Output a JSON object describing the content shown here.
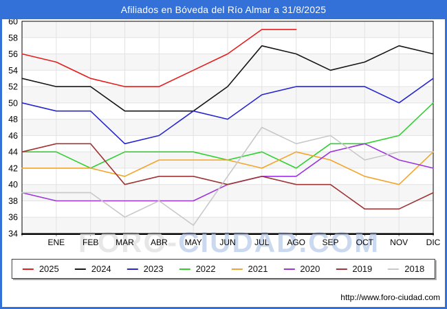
{
  "window": {
    "title": "Afiliados en Bóveda del Río Almar a 31/8/2025"
  },
  "watermark": {
    "part1": "FORO-",
    "part2": "CIUDAD.COM"
  },
  "footer": {
    "url": "http://www.foro-ciudad.com"
  },
  "colors": {
    "frame_blue": "#3371d9",
    "band_gray": "#f6f6f6",
    "grid_gray": "#e2e2e2",
    "axis_black": "#000000"
  },
  "chart_data": {
    "type": "line",
    "title": "Afiliados en Bóveda del Río Almar a 31/8/2025",
    "xlabel": "",
    "ylabel": "",
    "x_categories": [
      "ENE",
      "FEB",
      "MAR",
      "ABR",
      "MAY",
      "JUN",
      "JUL",
      "AGO",
      "SEP",
      "OCT",
      "NOV",
      "DIC"
    ],
    "ylim": [
      34,
      60
    ],
    "yticks": [
      34,
      36,
      38,
      40,
      42,
      44,
      46,
      48,
      50,
      52,
      54,
      56,
      58,
      60
    ],
    "grid": true,
    "legend_position": "bottom",
    "lead_in_label": "valor en el borde izquierdo (DIC del año anterior)",
    "series": [
      {
        "name": "2025",
        "color": "#e51d1d",
        "lead_in": 56,
        "values": [
          55,
          53,
          52,
          52,
          54,
          56,
          59,
          59,
          null,
          null,
          null,
          null
        ]
      },
      {
        "name": "2024",
        "color": "#161616",
        "lead_in": 53,
        "values": [
          52,
          52,
          49,
          49,
          49,
          52,
          57,
          56,
          54,
          55,
          57,
          56
        ]
      },
      {
        "name": "2023",
        "color": "#2525d2",
        "lead_in": 50,
        "values": [
          49,
          49,
          45,
          46,
          49,
          48,
          51,
          52,
          52,
          52,
          50,
          53
        ]
      },
      {
        "name": "2022",
        "color": "#2ed02e",
        "lead_in": 44,
        "values": [
          44,
          42,
          44,
          44,
          44,
          43,
          44,
          42,
          45,
          45,
          46,
          50
        ]
      },
      {
        "name": "2021",
        "color": "#f3a42a",
        "lead_in": 42,
        "values": [
          42,
          42,
          41,
          43,
          43,
          43,
          42,
          44,
          43,
          41,
          40,
          44
        ]
      },
      {
        "name": "2020",
        "color": "#9c33db",
        "lead_in": 39,
        "values": [
          38,
          38,
          38,
          38,
          38,
          40,
          41,
          41,
          44,
          45,
          43,
          42
        ]
      },
      {
        "name": "2019",
        "color": "#9e3434",
        "lead_in": 44,
        "values": [
          45,
          45,
          40,
          41,
          41,
          40,
          41,
          40,
          40,
          37,
          37,
          39
        ]
      },
      {
        "name": "2018",
        "color": "#c8c8c8",
        "lead_in": 39,
        "values": [
          39,
          39,
          36,
          38,
          35,
          41,
          47,
          45,
          46,
          43,
          44,
          44
        ]
      }
    ]
  }
}
